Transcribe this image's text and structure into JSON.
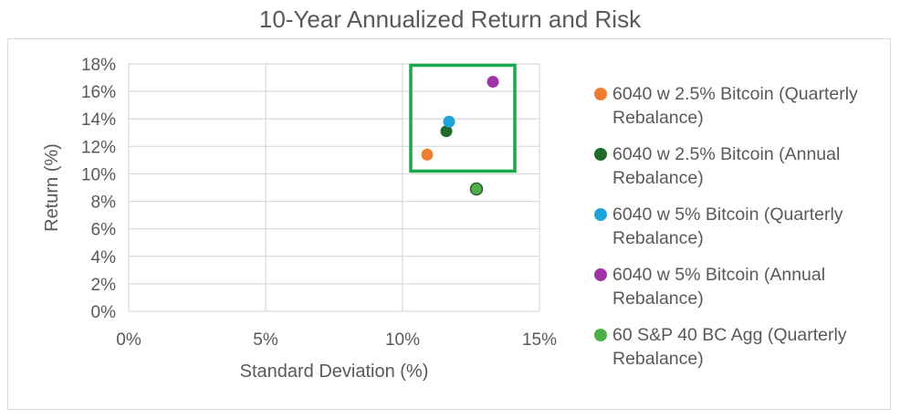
{
  "chart_data": {
    "type": "scatter",
    "title": "10-Year Annualized Return and Risk",
    "xlabel": "Standard Deviation (%)",
    "ylabel": "Return (%)",
    "xlim": [
      0,
      15
    ],
    "ylim": [
      0,
      18
    ],
    "x_ticks": [
      "0%",
      "5%",
      "10%",
      "15%"
    ],
    "y_ticks": [
      "0%",
      "2%",
      "4%",
      "6%",
      "8%",
      "10%",
      "12%",
      "14%",
      "16%",
      "18%"
    ],
    "grid": true,
    "legend_position": "right",
    "series": [
      {
        "name": "6040 w 2.5% Bitcoin (Quarterly Rebalance)",
        "color": "#ed7d31",
        "x": [
          10.9
        ],
        "y": [
          11.4
        ]
      },
      {
        "name": "6040 w 2.5% Bitcoin (Annual Rebalance)",
        "color": "#1e6b2a",
        "x": [
          11.6
        ],
        "y": [
          13.1
        ]
      },
      {
        "name": "6040 w 5% Bitcoin (Quarterly Rebalance)",
        "color": "#1fa3d9",
        "x": [
          11.7
        ],
        "y": [
          13.8
        ]
      },
      {
        "name": "6040 w 5% Bitcoin (Annual Rebalance)",
        "color": "#a033a8",
        "x": [
          13.3
        ],
        "y": [
          16.7
        ]
      },
      {
        "name": "60 S&P 40 BC Agg (Quarterly Rebalance)",
        "color": "#4db04a",
        "x": [
          12.7
        ],
        "y": [
          8.9
        ]
      }
    ],
    "highlight_box": {
      "color": "#19a84a",
      "x_range": [
        10.3,
        14.1
      ],
      "y_range": [
        10.2,
        17.9
      ]
    }
  }
}
